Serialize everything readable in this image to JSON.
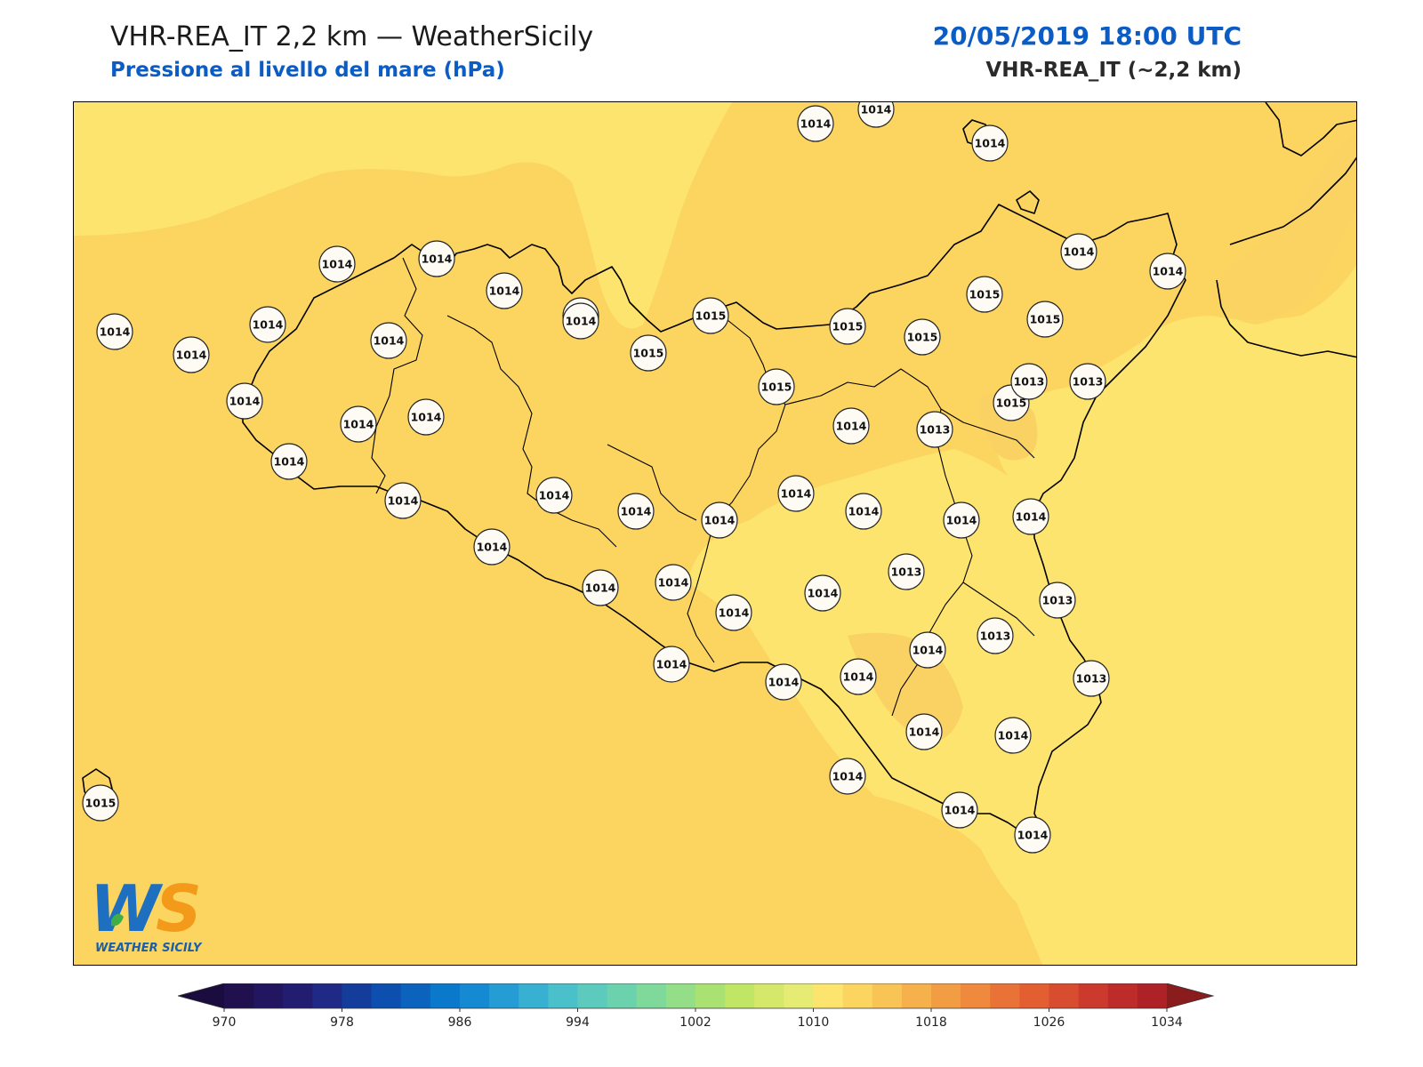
{
  "header": {
    "title_left": "VHR-REA_IT 2,2 km — WeatherSicily",
    "subtitle_left": "Pressione al livello del mare (hPa)",
    "title_right": "20/05/2019 18:00 UTC",
    "subtitle_right": "VHR-REA_IT (~2,2 km)"
  },
  "colors": {
    "field_base": "#fcd561",
    "field_low": "#fce46f",
    "coast": "#000000",
    "title_blue": "#0b5cc4"
  },
  "logo": {
    "text": "WS",
    "caption": "WEATHER SICILY"
  },
  "stations": [
    {
      "id": "s01",
      "label": "1014"
    },
    {
      "id": "s02",
      "label": "1014"
    },
    {
      "id": "s03",
      "label": "1014"
    },
    {
      "id": "s04",
      "label": "1014"
    },
    {
      "id": "s05",
      "label": "1014"
    },
    {
      "id": "s06",
      "label": "1014"
    },
    {
      "id": "s07",
      "label": "1014"
    },
    {
      "id": "s08",
      "label": "1014"
    },
    {
      "id": "s09",
      "label": "1014"
    },
    {
      "id": "s10",
      "label": "1014"
    },
    {
      "id": "s11",
      "label": "1014"
    },
    {
      "id": "s12",
      "label": "1015"
    },
    {
      "id": "s13",
      "label": "1014"
    },
    {
      "id": "s14",
      "label": "1015"
    },
    {
      "id": "s15",
      "label": "1015"
    },
    {
      "id": "s16",
      "label": "1015"
    },
    {
      "id": "s17",
      "label": "1015"
    },
    {
      "id": "s18",
      "label": "1015"
    },
    {
      "id": "s19",
      "label": "1015"
    },
    {
      "id": "s20",
      "label": "1015"
    },
    {
      "id": "s21",
      "label": "1015"
    },
    {
      "id": "s22",
      "label": "1014"
    },
    {
      "id": "s23",
      "label": "1014"
    },
    {
      "id": "s24",
      "label": "1014"
    },
    {
      "id": "s25",
      "label": "1014"
    },
    {
      "id": "s26",
      "label": "1014"
    },
    {
      "id": "s27",
      "label": "1014"
    },
    {
      "id": "s28",
      "label": "1013"
    },
    {
      "id": "s29",
      "label": "1013"
    },
    {
      "id": "s30",
      "label": "1014"
    },
    {
      "id": "s31",
      "label": "1014"
    },
    {
      "id": "s32",
      "label": "1014"
    },
    {
      "id": "s33",
      "label": "1014"
    },
    {
      "id": "s34",
      "label": "1014"
    },
    {
      "id": "s35",
      "label": "1014"
    },
    {
      "id": "s36",
      "label": "1014"
    },
    {
      "id": "s37",
      "label": "1014"
    },
    {
      "id": "s38",
      "label": "1014"
    },
    {
      "id": "s39",
      "label": "1013"
    },
    {
      "id": "s40",
      "label": "1013"
    },
    {
      "id": "s41",
      "label": "1013"
    },
    {
      "id": "s42",
      "label": "1014"
    },
    {
      "id": "s43",
      "label": "1014"
    },
    {
      "id": "s44",
      "label": "1014"
    },
    {
      "id": "s45",
      "label": "1014"
    },
    {
      "id": "s46",
      "label": "1014"
    },
    {
      "id": "s47",
      "label": "1014"
    },
    {
      "id": "s48",
      "label": "1014"
    },
    {
      "id": "s49",
      "label": "1014"
    },
    {
      "id": "s50",
      "label": "1014"
    },
    {
      "id": "s51",
      "label": "1014"
    },
    {
      "id": "s52",
      "label": "1014"
    },
    {
      "id": "s53",
      "label": "1013"
    },
    {
      "id": "s54",
      "label": "1013"
    },
    {
      "id": "s55",
      "label": "1015"
    },
    {
      "id": "s56",
      "label": "1014"
    },
    {
      "id": "s57",
      "label": "1014"
    }
  ],
  "colorbar": {
    "min": 970,
    "max": 1034,
    "step": 2,
    "ticks": [
      "970",
      "978",
      "986",
      "994",
      "1002",
      "1010",
      "1018",
      "1026",
      "1034"
    ],
    "colors": [
      "#21104e",
      "#221660",
      "#231d72",
      "#1e2a86",
      "#143c9b",
      "#0d4fae",
      "#0b63be",
      "#0a78cb",
      "#1589d2",
      "#259cd4",
      "#37b0d2",
      "#4ac0cb",
      "#5ccbbe",
      "#6cd2ae",
      "#7ed99b",
      "#93de86",
      "#a9e272",
      "#c1e565",
      "#d5e86a",
      "#e6eb73",
      "#fce46f",
      "#fcd561",
      "#f9c456",
      "#f6b14c",
      "#f29d44",
      "#ee893d",
      "#e97337",
      "#e35f32",
      "#d84c2f",
      "#cc3a2d",
      "#bd2b2a",
      "#ae2227"
    ],
    "under_color": "#1b0c3f",
    "over_color": "#8b1c1e"
  }
}
